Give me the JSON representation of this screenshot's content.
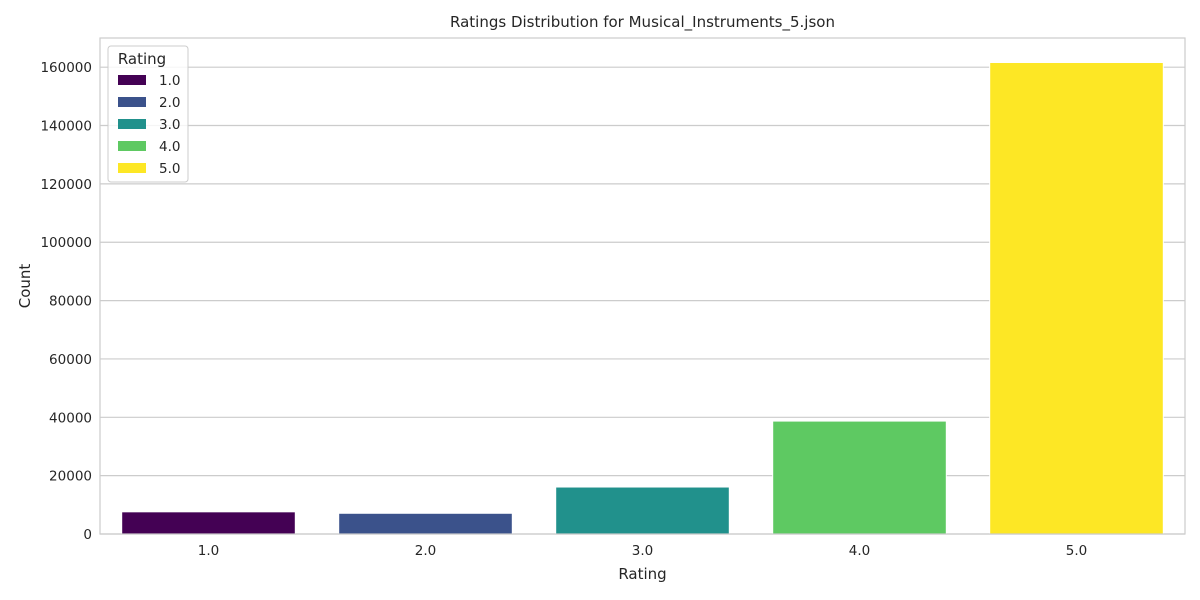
{
  "chart_data": {
    "type": "bar",
    "title": "Ratings Distribution for Musical_Instruments_5.json",
    "xlabel": "Rating",
    "ylabel": "Count",
    "categories": [
      "1.0",
      "2.0",
      "3.0",
      "4.0",
      "5.0"
    ],
    "values": [
      7600,
      7100,
      16100,
      38700,
      161600
    ],
    "colors": [
      "#440154",
      "#3b528b",
      "#21918c",
      "#5ec962",
      "#fde725"
    ],
    "ylim": [
      0,
      170000
    ],
    "yticks": [
      0,
      20000,
      40000,
      60000,
      80000,
      100000,
      120000,
      140000,
      160000
    ],
    "grid": true,
    "legend": {
      "title": "Rating",
      "position": "top-left",
      "entries": [
        "1.0",
        "2.0",
        "3.0",
        "4.0",
        "5.0"
      ]
    }
  }
}
